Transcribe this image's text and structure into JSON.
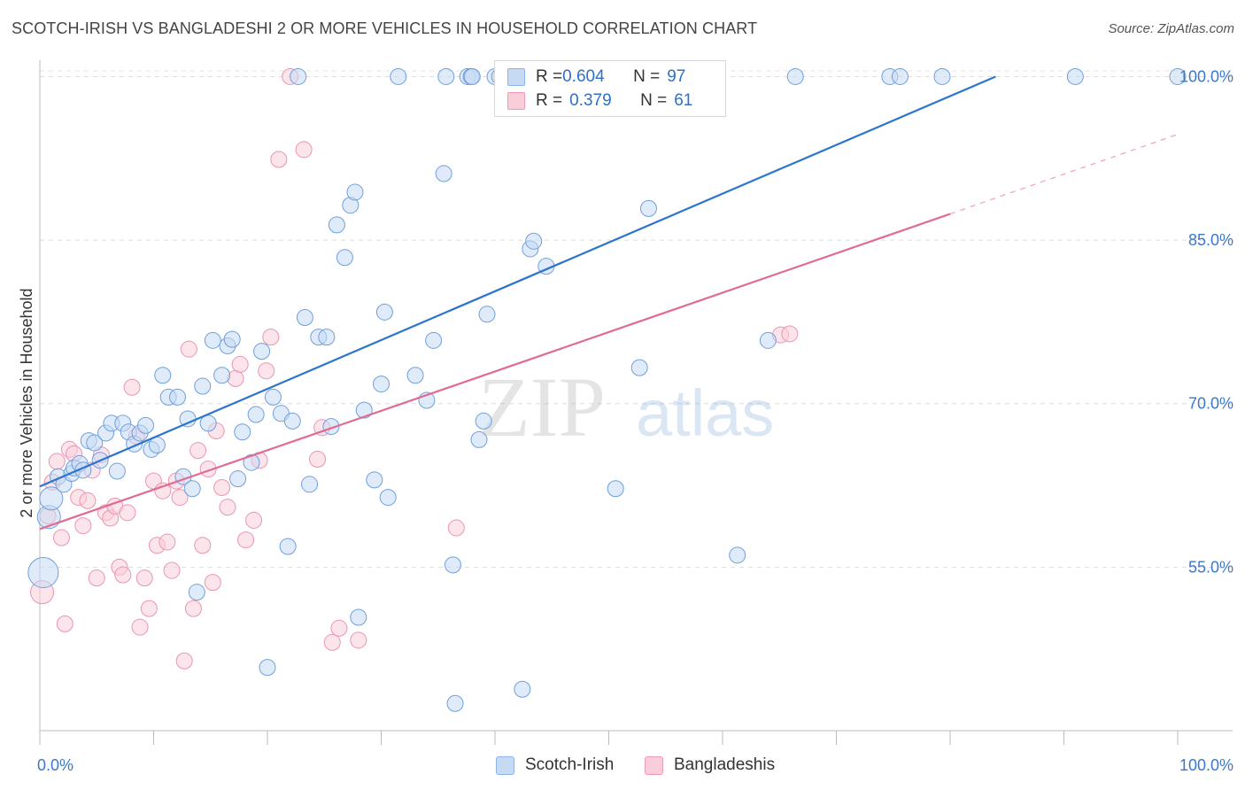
{
  "header": {
    "title": "SCOTCH-IRISH VS BANGLADESHI 2 OR MORE VEHICLES IN HOUSEHOLD CORRELATION CHART",
    "source": "Source: ZipAtlas.com"
  },
  "watermark": {
    "zip": "ZIP",
    "atlas": "atlas"
  },
  "legend": {
    "rows": [
      {
        "r_label": "R = ",
        "r_value": "0.604",
        "n_label": "N = ",
        "n_value": "97",
        "color": "#aecbf0"
      },
      {
        "r_label": "R = ",
        "r_value": "0.379",
        "n_label": "N = ",
        "n_value": "61",
        "color": "#f5b8ca"
      }
    ],
    "bottom": [
      {
        "label": "Scotch-Irish",
        "color": "#aecbf0"
      },
      {
        "label": "Bangladeshis",
        "color": "#f5b8ca"
      }
    ]
  },
  "chart_data": {
    "type": "scatter",
    "title": "SCOTCH-IRISH VS BANGLADESHI 2 OR MORE VEHICLES IN HOUSEHOLD CORRELATION CHART",
    "xlabel": "",
    "ylabel": "2 or more Vehicles in Household",
    "xlim": [
      0,
      100
    ],
    "ylim": [
      40,
      101.5
    ],
    "x_tick_labels": [
      "0.0%",
      "100.0%"
    ],
    "y_ticks": [
      55,
      70,
      85,
      100
    ],
    "y_tick_labels": [
      "55.0%",
      "70.0%",
      "85.0%",
      "100.0%"
    ],
    "grid": true,
    "legend_placement": "top-center",
    "colors": {
      "scotch_irish": "#5b9be3",
      "bangladeshis": "#ec8fab",
      "blue_line": "#2c74cc",
      "pink_line": "#e06b93"
    },
    "series": [
      {
        "name": "Scotch-Irish",
        "trend": {
          "x0": 0,
          "y0": 62.4,
          "x1": 84,
          "y1": 100
        },
        "points": [
          [
            0.3,
            54.5,
            3
          ],
          [
            0.8,
            59.6,
            2
          ],
          [
            1.0,
            61.3,
            2
          ],
          [
            1.6,
            63.3,
            1
          ],
          [
            2.1,
            62.6,
            1
          ],
          [
            2.8,
            63.6,
            1
          ],
          [
            3.0,
            64.1,
            1
          ],
          [
            3.5,
            64.5,
            1
          ],
          [
            3.8,
            63.9,
            1
          ],
          [
            4.3,
            66.6,
            1
          ],
          [
            4.8,
            66.4,
            1
          ],
          [
            5.3,
            64.8,
            1
          ],
          [
            5.8,
            67.3,
            1
          ],
          [
            6.3,
            68.2,
            1
          ],
          [
            6.8,
            63.8,
            1
          ],
          [
            7.3,
            68.2,
            1
          ],
          [
            7.8,
            67.4,
            1
          ],
          [
            8.3,
            66.3,
            1
          ],
          [
            8.8,
            67.3,
            1
          ],
          [
            9.3,
            68.0,
            1
          ],
          [
            9.8,
            65.8,
            1
          ],
          [
            10.3,
            66.2,
            1
          ],
          [
            10.8,
            72.6,
            1
          ],
          [
            11.3,
            70.6,
            1
          ],
          [
            12.1,
            70.6,
            1
          ],
          [
            12.6,
            63.3,
            1
          ],
          [
            13.0,
            68.6,
            1
          ],
          [
            13.4,
            62.2,
            1
          ],
          [
            13.8,
            52.7,
            1
          ],
          [
            14.3,
            71.6,
            1
          ],
          [
            14.8,
            68.2,
            1
          ],
          [
            15.2,
            75.8,
            1
          ],
          [
            16.0,
            72.6,
            1
          ],
          [
            16.5,
            75.3,
            1
          ],
          [
            16.9,
            75.9,
            1
          ],
          [
            17.4,
            63.1,
            1
          ],
          [
            17.8,
            67.4,
            1
          ],
          [
            18.6,
            64.6,
            1
          ],
          [
            19.0,
            69.0,
            1
          ],
          [
            19.5,
            74.8,
            1
          ],
          [
            20.0,
            45.8,
            1
          ],
          [
            20.5,
            70.6,
            1
          ],
          [
            21.2,
            69.1,
            1
          ],
          [
            21.8,
            56.9,
            1
          ],
          [
            22.2,
            68.4,
            1
          ],
          [
            22.7,
            100.0,
            1
          ],
          [
            23.3,
            77.9,
            1
          ],
          [
            23.7,
            62.6,
            1
          ],
          [
            24.5,
            76.1,
            1
          ],
          [
            25.2,
            76.1,
            1
          ],
          [
            25.6,
            67.9,
            1
          ],
          [
            26.1,
            86.4,
            1
          ],
          [
            26.8,
            83.4,
            1
          ],
          [
            27.3,
            88.2,
            1
          ],
          [
            27.7,
            89.4,
            1
          ],
          [
            28.0,
            50.4,
            1
          ],
          [
            28.5,
            69.4,
            1
          ],
          [
            29.4,
            63.0,
            1
          ],
          [
            30.0,
            71.8,
            1
          ],
          [
            30.3,
            78.4,
            1
          ],
          [
            30.6,
            61.4,
            1
          ],
          [
            31.5,
            100.0,
            1
          ],
          [
            33.0,
            72.6,
            1
          ],
          [
            34.0,
            70.3,
            1
          ],
          [
            34.6,
            75.8,
            1
          ],
          [
            35.5,
            91.1,
            1
          ],
          [
            35.7,
            100.0,
            1
          ],
          [
            36.3,
            55.2,
            1
          ],
          [
            36.5,
            42.5,
            1
          ],
          [
            37.6,
            100.0,
            1
          ],
          [
            37.9,
            100.0,
            1
          ],
          [
            38.0,
            100.0,
            1
          ],
          [
            38.6,
            66.7,
            1
          ],
          [
            39.0,
            68.4,
            1
          ],
          [
            39.3,
            78.2,
            1
          ],
          [
            40.0,
            100.0,
            1
          ],
          [
            40.4,
            100.0,
            1
          ],
          [
            42.4,
            43.8,
            1
          ],
          [
            43.1,
            84.2,
            1
          ],
          [
            43.4,
            84.9,
            1
          ],
          [
            44.5,
            82.6,
            1
          ],
          [
            50.3,
            100.0,
            1
          ],
          [
            50.6,
            62.2,
            1
          ],
          [
            52.7,
            73.3,
            1
          ],
          [
            53.5,
            87.9,
            1
          ],
          [
            57.8,
            100.0,
            1
          ],
          [
            59.0,
            100.0,
            1
          ],
          [
            61.3,
            56.1,
            1
          ],
          [
            64.0,
            75.8,
            1
          ],
          [
            66.4,
            100.0,
            1
          ],
          [
            74.7,
            100.0,
            1
          ],
          [
            75.6,
            100.0,
            1
          ],
          [
            79.3,
            100.0,
            1
          ],
          [
            91.0,
            100.0,
            1
          ],
          [
            100.0,
            100.0,
            1
          ]
        ]
      },
      {
        "name": "Bangladeshis",
        "trend": {
          "x0": 0,
          "y0": 58.5,
          "x1": 80,
          "y1": 87.4,
          "dash_to_x": 100,
          "dash_to_y": 94.7
        },
        "points": [
          [
            0.2,
            52.7,
            2
          ],
          [
            0.7,
            59.7,
            1
          ],
          [
            1.1,
            62.8,
            1
          ],
          [
            1.5,
            64.7,
            1
          ],
          [
            1.9,
            57.7,
            1
          ],
          [
            2.2,
            49.8,
            1
          ],
          [
            2.6,
            65.8,
            1
          ],
          [
            3.0,
            65.4,
            1
          ],
          [
            3.4,
            61.4,
            1
          ],
          [
            3.8,
            58.8,
            1
          ],
          [
            4.2,
            61.1,
            1
          ],
          [
            4.6,
            63.9,
            1
          ],
          [
            5.0,
            54.0,
            1
          ],
          [
            5.4,
            65.3,
            1
          ],
          [
            5.8,
            60.0,
            1
          ],
          [
            6.2,
            59.5,
            1
          ],
          [
            6.6,
            60.6,
            1
          ],
          [
            7.0,
            55.0,
            1
          ],
          [
            7.3,
            54.3,
            1
          ],
          [
            7.7,
            60.0,
            1
          ],
          [
            8.1,
            71.5,
            1
          ],
          [
            8.5,
            67.0,
            1
          ],
          [
            8.8,
            49.5,
            1
          ],
          [
            9.2,
            54.0,
            1
          ],
          [
            9.6,
            51.2,
            1
          ],
          [
            10.0,
            62.9,
            1
          ],
          [
            10.3,
            57.0,
            1
          ],
          [
            10.8,
            62.0,
            1
          ],
          [
            11.2,
            57.3,
            1
          ],
          [
            11.6,
            54.7,
            1
          ],
          [
            12.0,
            62.9,
            1
          ],
          [
            12.3,
            61.4,
            1
          ],
          [
            12.7,
            46.4,
            1
          ],
          [
            13.1,
            75.0,
            1
          ],
          [
            13.5,
            51.2,
            1
          ],
          [
            13.9,
            65.7,
            1
          ],
          [
            14.3,
            57.0,
            1
          ],
          [
            14.8,
            64.0,
            1
          ],
          [
            15.2,
            53.6,
            1
          ],
          [
            15.5,
            67.5,
            1
          ],
          [
            16.0,
            62.3,
            1
          ],
          [
            16.5,
            60.5,
            1
          ],
          [
            17.2,
            72.3,
            1
          ],
          [
            17.6,
            73.6,
            1
          ],
          [
            18.1,
            57.5,
            1
          ],
          [
            18.8,
            59.3,
            1
          ],
          [
            19.3,
            64.8,
            1
          ],
          [
            19.9,
            73.0,
            1
          ],
          [
            20.3,
            76.1,
            1
          ],
          [
            21.0,
            92.4,
            1
          ],
          [
            22.0,
            100.0,
            1
          ],
          [
            23.2,
            93.3,
            1
          ],
          [
            24.4,
            64.9,
            1
          ],
          [
            24.8,
            67.8,
            1
          ],
          [
            25.7,
            48.1,
            1
          ],
          [
            26.3,
            49.4,
            1
          ],
          [
            28.0,
            48.3,
            1
          ],
          [
            36.6,
            58.6,
            1
          ],
          [
            41.3,
            100.0,
            1
          ],
          [
            65.1,
            76.3,
            1
          ],
          [
            65.9,
            76.4,
            1
          ]
        ]
      }
    ]
  }
}
